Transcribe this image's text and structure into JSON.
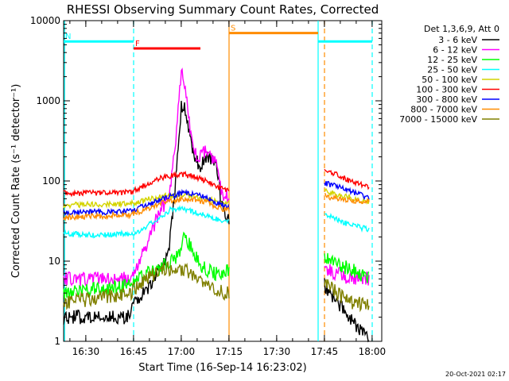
{
  "chart_data": {
    "type": "line",
    "title": "RHESSI Observing Summary Count Rates, Corrected",
    "xlabel": "Start Time (16-Sep-14 16:23:02)",
    "ylabel": "Corrected Count Rate (s⁻¹ detector⁻¹)",
    "y_scale": "log",
    "ylim": [
      1,
      10000
    ],
    "xlim_minutes_from_start": [
      0,
      100
    ],
    "x_ticks": [
      {
        "label": "16:30",
        "minute": 6.97
      },
      {
        "label": "16:45",
        "minute": 21.97
      },
      {
        "label": "17:00",
        "minute": 36.97
      },
      {
        "label": "17:15",
        "minute": 51.97
      },
      {
        "label": "17:30",
        "minute": 66.97
      },
      {
        "label": "17:45",
        "minute": 81.97
      },
      {
        "label": "18:00",
        "minute": 96.97
      }
    ],
    "y_ticks": [
      {
        "label": "1",
        "value": 1
      },
      {
        "label": "10",
        "value": 10
      },
      {
        "label": "100",
        "value": 100
      },
      {
        "label": "1000",
        "value": 1000
      },
      {
        "label": "10000",
        "value": 10000
      }
    ],
    "legend_title": "Det 1,3,6,9, Att 0",
    "legend_position": "right",
    "series": [
      {
        "name": "3 - 6 keV",
        "color": "#000000",
        "points": [
          [
            0,
            2
          ],
          [
            21,
            2
          ],
          [
            22,
            3
          ],
          [
            27,
            5
          ],
          [
            33,
            12
          ],
          [
            35,
            80
          ],
          [
            37,
            900
          ],
          [
            38,
            800
          ],
          [
            41,
            200
          ],
          [
            43,
            150
          ],
          [
            45,
            200
          ],
          [
            48,
            150
          ],
          [
            50,
            45
          ],
          [
            52,
            30
          ]
        ],
        "points2": [
          [
            82,
            5
          ],
          [
            86,
            3
          ],
          [
            90,
            2
          ],
          [
            96,
            1
          ]
        ]
      },
      {
        "name": "6 - 12 keV",
        "color": "#ff00ff",
        "points": [
          [
            0,
            6
          ],
          [
            21,
            6
          ],
          [
            24,
            10
          ],
          [
            27,
            20
          ],
          [
            30,
            40
          ],
          [
            33,
            60
          ],
          [
            35,
            250
          ],
          [
            37,
            2400
          ],
          [
            38,
            1600
          ],
          [
            40,
            400
          ],
          [
            42,
            200
          ],
          [
            45,
            250
          ],
          [
            48,
            160
          ],
          [
            50,
            60
          ],
          [
            52,
            70
          ]
        ],
        "points2": [
          [
            82,
            8
          ],
          [
            86,
            7
          ],
          [
            90,
            6
          ],
          [
            96,
            6
          ]
        ]
      },
      {
        "name": "12 - 25 keV",
        "color": "#00ff00",
        "points": [
          [
            0,
            4
          ],
          [
            21,
            5
          ],
          [
            26,
            7
          ],
          [
            30,
            8
          ],
          [
            34,
            10
          ],
          [
            36,
            12
          ],
          [
            38,
            20
          ],
          [
            40,
            15
          ],
          [
            43,
            9
          ],
          [
            47,
            7
          ],
          [
            50,
            7
          ],
          [
            52,
            8
          ]
        ],
        "points2": [
          [
            82,
            12
          ],
          [
            86,
            9
          ],
          [
            90,
            8
          ],
          [
            96,
            6
          ]
        ]
      },
      {
        "name": "25 - 50 keV",
        "color": "#00ffff",
        "points": [
          [
            0,
            22
          ],
          [
            10,
            21
          ],
          [
            21,
            22
          ],
          [
            25,
            25
          ],
          [
            30,
            35
          ],
          [
            34,
            45
          ],
          [
            38,
            45
          ],
          [
            42,
            40
          ],
          [
            46,
            35
          ],
          [
            50,
            32
          ],
          [
            52,
            32
          ]
        ],
        "points2": [
          [
            82,
            40
          ],
          [
            86,
            33
          ],
          [
            90,
            28
          ],
          [
            96,
            25
          ]
        ]
      },
      {
        "name": "50 - 100 keV",
        "color": "#d4d400",
        "points": [
          [
            0,
            50
          ],
          [
            21,
            52
          ],
          [
            26,
            58
          ],
          [
            32,
            65
          ],
          [
            38,
            68
          ],
          [
            42,
            64
          ],
          [
            46,
            58
          ],
          [
            50,
            52
          ],
          [
            52,
            55
          ]
        ],
        "points2": [
          [
            82,
            75
          ],
          [
            86,
            68
          ],
          [
            90,
            62
          ],
          [
            96,
            55
          ]
        ]
      },
      {
        "name": "100 - 300 keV",
        "color": "#ff0000",
        "points": [
          [
            0,
            70
          ],
          [
            21,
            72
          ],
          [
            26,
            90
          ],
          [
            32,
            115
          ],
          [
            38,
            120
          ],
          [
            42,
            110
          ],
          [
            46,
            95
          ],
          [
            50,
            78
          ],
          [
            52,
            80
          ]
        ],
        "points2": [
          [
            82,
            140
          ],
          [
            86,
            120
          ],
          [
            90,
            100
          ],
          [
            96,
            85
          ]
        ]
      },
      {
        "name": "300 - 800 keV",
        "color": "#0000ff",
        "points": [
          [
            0,
            40
          ],
          [
            21,
            42
          ],
          [
            26,
            50
          ],
          [
            32,
            62
          ],
          [
            38,
            72
          ],
          [
            42,
            68
          ],
          [
            46,
            58
          ],
          [
            50,
            50
          ],
          [
            52,
            48
          ]
        ],
        "points2": [
          [
            82,
            95
          ],
          [
            86,
            85
          ],
          [
            90,
            75
          ],
          [
            96,
            62
          ]
        ]
      },
      {
        "name": "800 - 7000 keV",
        "color": "#ff8c00",
        "points": [
          [
            0,
            35
          ],
          [
            21,
            38
          ],
          [
            26,
            44
          ],
          [
            32,
            55
          ],
          [
            38,
            60
          ],
          [
            42,
            58
          ],
          [
            46,
            52
          ],
          [
            50,
            44
          ],
          [
            52,
            45
          ]
        ],
        "points2": [
          [
            82,
            65
          ],
          [
            86,
            60
          ],
          [
            90,
            57
          ],
          [
            96,
            55
          ]
        ]
      },
      {
        "name": "7000 - 15000 keV",
        "color": "#808000",
        "points": [
          [
            0,
            3
          ],
          [
            21,
            4
          ],
          [
            26,
            6
          ],
          [
            32,
            8
          ],
          [
            38,
            8
          ],
          [
            42,
            6
          ],
          [
            46,
            5
          ],
          [
            50,
            4
          ],
          [
            52,
            4
          ]
        ],
        "points2": [
          [
            82,
            6
          ],
          [
            86,
            4
          ],
          [
            90,
            3
          ],
          [
            96,
            3
          ]
        ]
      }
    ],
    "annotations": [
      {
        "label": "N",
        "color": "#00ffff",
        "x_range": [
          0,
          22
        ],
        "level": 5500
      },
      {
        "label": "F",
        "color": "#ff0000",
        "x_range": [
          22,
          43
        ],
        "level": 4500
      },
      {
        "label": "S",
        "color": "#ff8c00",
        "x_range": [
          52,
          80
        ],
        "level": 7000
      },
      {
        "label": "",
        "color": "#00ffff",
        "x_range": [
          80,
          97
        ],
        "level": 5500
      }
    ],
    "event_lines": [
      {
        "minute": 0.3,
        "color": "#00ffff",
        "style": "solid"
      },
      {
        "minute": 22,
        "color": "#00ffff",
        "style": "dashed"
      },
      {
        "minute": 52,
        "color": "#ff8c00",
        "style": "solid"
      },
      {
        "minute": 80,
        "color": "#00ffff",
        "style": "solid"
      },
      {
        "minute": 82,
        "color": "#ff8c00",
        "style": "dashed"
      },
      {
        "minute": 97,
        "color": "#00ffff",
        "style": "dashed"
      }
    ]
  },
  "footer": {
    "timestamp": "20-Oct-2021 02:17"
  }
}
